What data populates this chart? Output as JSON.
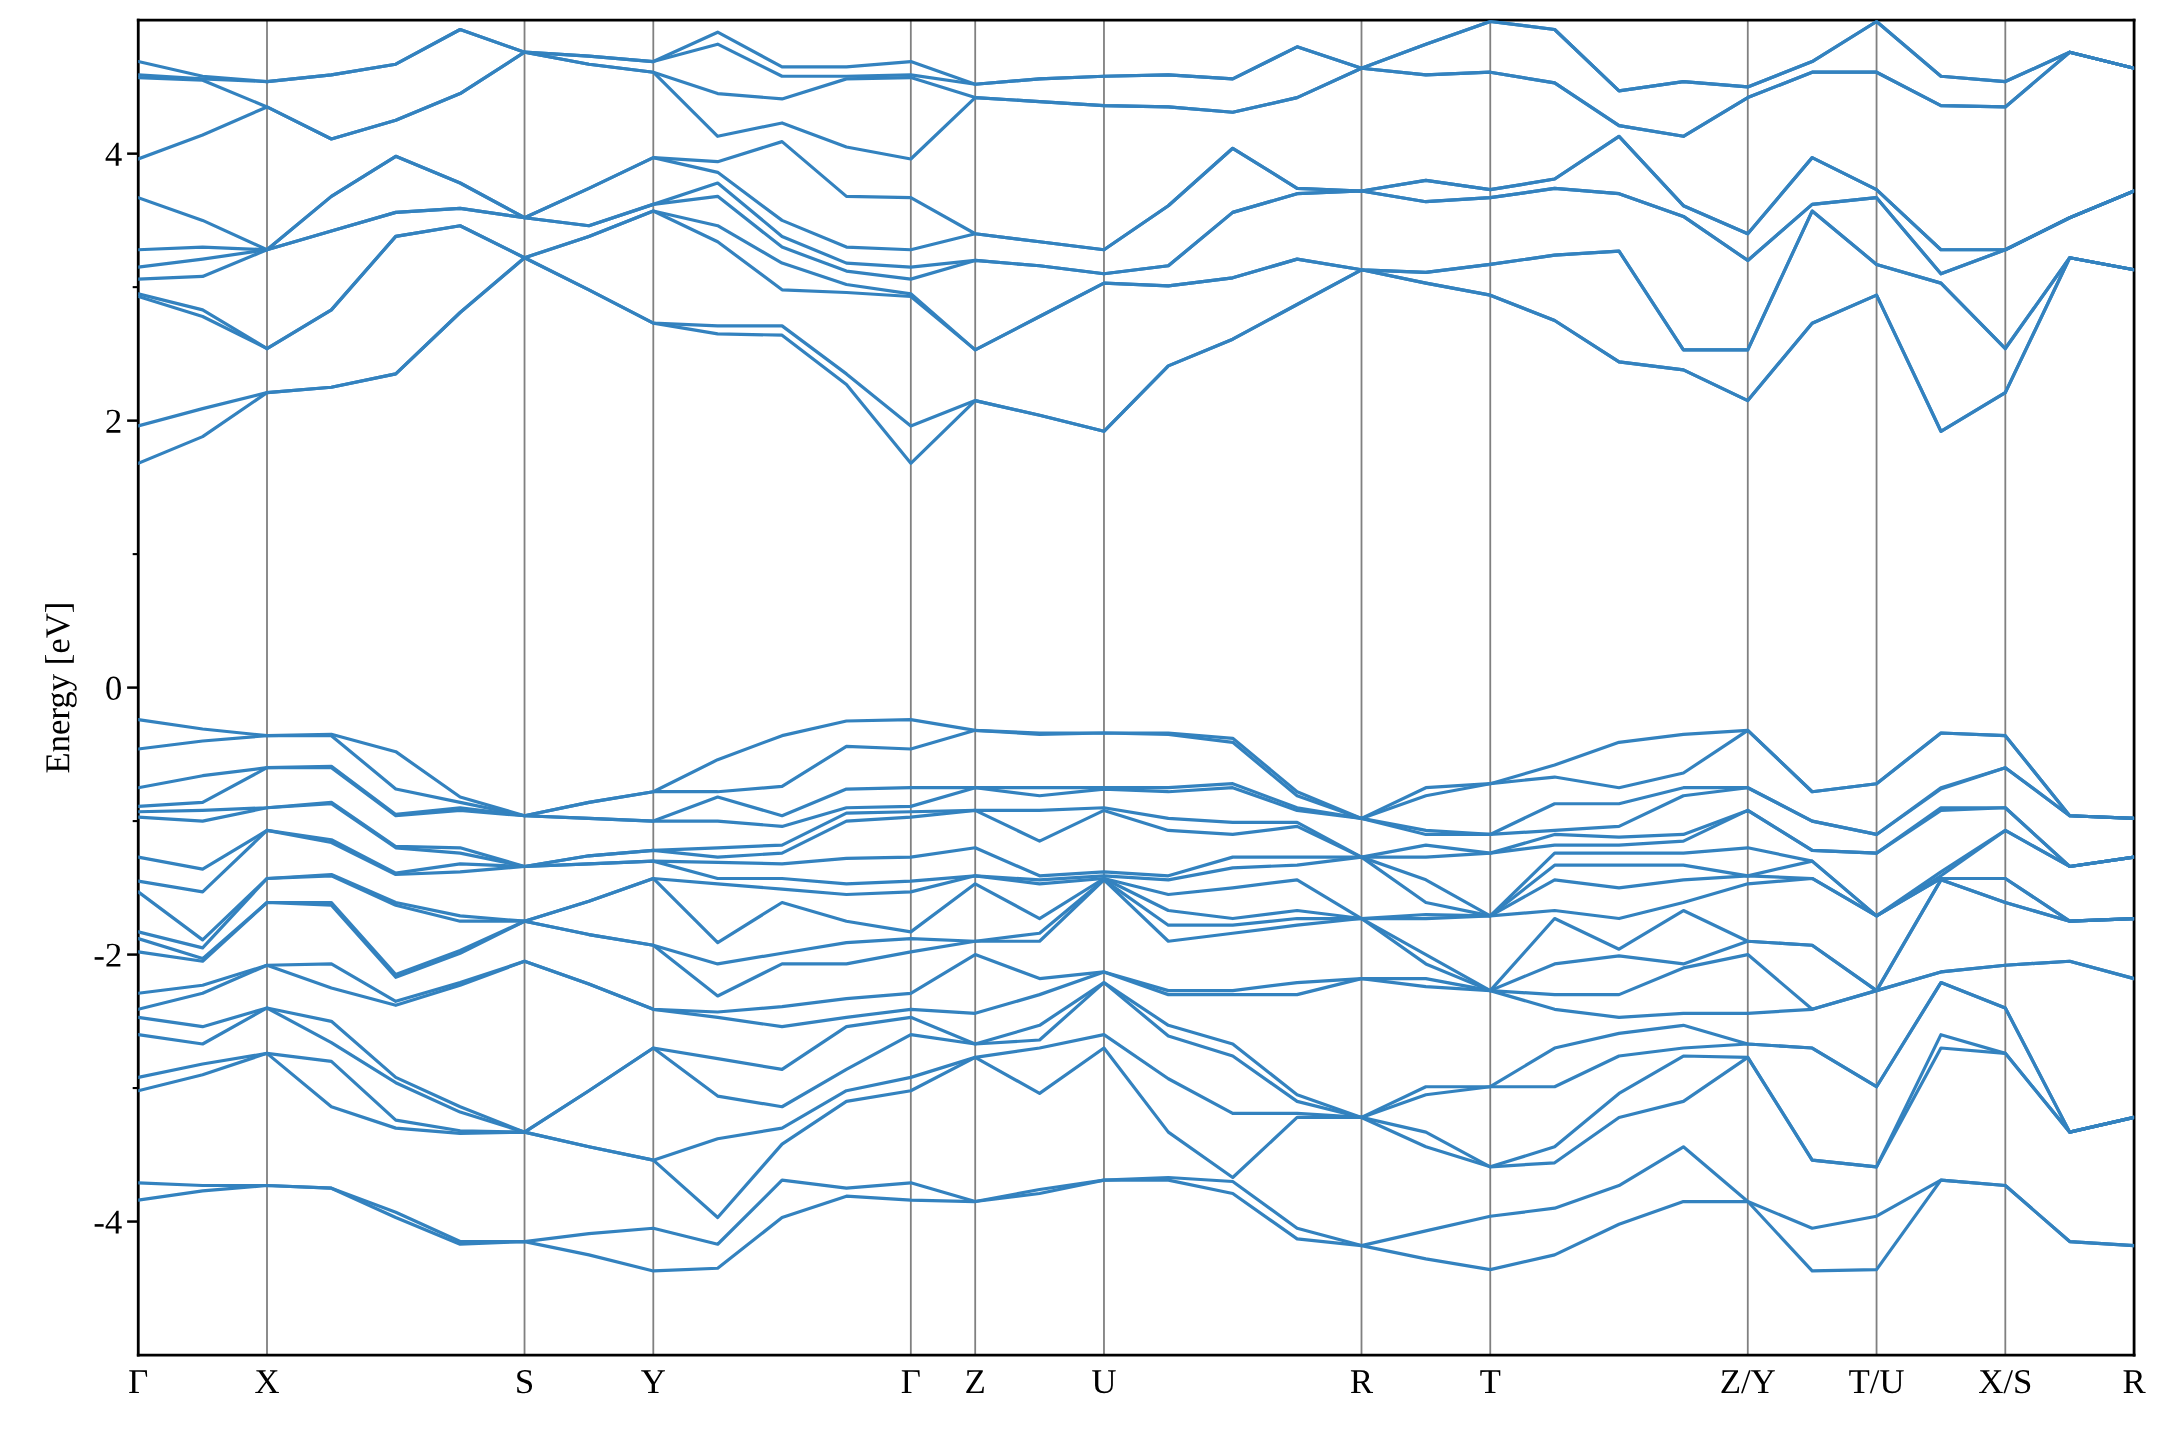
{
  "chart_data": {
    "type": "line",
    "ylabel": "Energy [eV]",
    "legend": false,
    "grid": "x",
    "categories": [
      "Γ",
      null,
      "X",
      null,
      null,
      null,
      "S",
      null,
      "Y",
      null,
      null,
      null,
      "Γ",
      "Z",
      null,
      "U",
      null,
      null,
      null,
      "R",
      null,
      "T",
      null,
      null,
      null,
      "Z/Y",
      null,
      "T/U",
      null,
      "X/S",
      null,
      "R"
    ],
    "ylim": [
      -5,
      5
    ],
    "yticks": [
      {
        "value": -4,
        "label": "-4"
      },
      {
        "value": -3,
        "label": null
      },
      {
        "value": -2,
        "label": "-2"
      },
      {
        "value": -1,
        "label": null
      },
      0,
      {
        "value": 1,
        "label": null
      },
      2,
      {
        "value": 3,
        "label": null
      },
      4
    ],
    "series": [
      {
        "color": "#3382bf",
        "values": [
          -3.84,
          -3.77,
          -3.73,
          -3.75,
          -3.97,
          -4.17,
          -4.15,
          -4.25,
          -4.37,
          -4.35,
          -3.97,
          -3.81,
          -3.84,
          -3.85,
          -3.79,
          -3.69,
          -3.69,
          -3.79,
          -4.13,
          -4.18,
          -4.28,
          -4.36,
          -4.25,
          -4.02,
          -3.85,
          -3.85,
          -4.37,
          -4.36,
          -3.69,
          -3.73,
          -4.15,
          -4.18
        ]
      },
      {
        "color": "#3382bf",
        "values": [
          -3.71,
          -3.73,
          -3.73,
          -3.75,
          -3.93,
          -4.15,
          -4.15,
          -4.09,
          -4.05,
          -4.17,
          -3.69,
          -3.75,
          -3.71,
          -3.85,
          -3.76,
          -3.69,
          -3.67,
          -3.7,
          -4.05,
          -4.18,
          -4.07,
          -3.96,
          -3.9,
          -3.73,
          -3.44,
          -3.85,
          -4.05,
          -3.96,
          -3.69,
          -3.73,
          -4.15,
          -4.18
        ]
      },
      {
        "color": "#3382bf",
        "values": [
          -3.02,
          -2.9,
          -2.74,
          -3.14,
          -3.3,
          -3.34,
          -3.33,
          -3.44,
          -3.54,
          -3.97,
          -3.42,
          -3.1,
          -3.02,
          -2.77,
          -3.04,
          -2.7,
          -3.33,
          -3.67,
          -3.22,
          -3.22,
          -3.44,
          -3.59,
          -3.56,
          -3.22,
          -3.1,
          -2.77,
          -3.54,
          -3.59,
          -2.7,
          -2.74,
          -3.33,
          -3.22
        ]
      },
      {
        "color": "#3382bf",
        "values": [
          -2.92,
          -2.82,
          -2.74,
          -2.8,
          -3.24,
          -3.32,
          -3.33,
          -3.44,
          -3.54,
          -3.38,
          -3.3,
          -3.02,
          -2.92,
          -2.77,
          -2.7,
          -2.6,
          -2.93,
          -3.19,
          -3.19,
          -3.22,
          -3.33,
          -3.59,
          -3.44,
          -3.04,
          -2.76,
          -2.77,
          -3.54,
          -3.59,
          -2.6,
          -2.74,
          -3.33,
          -3.22
        ]
      },
      {
        "color": "#3382bf",
        "values": [
          -2.6,
          -2.67,
          -2.4,
          -2.66,
          -2.96,
          -3.18,
          -3.33,
          -3.02,
          -2.7,
          -3.06,
          -3.14,
          -2.86,
          -2.6,
          -2.67,
          -2.64,
          -2.21,
          -2.61,
          -2.76,
          -3.1,
          -3.22,
          -3.05,
          -2.99,
          -2.99,
          -2.76,
          -2.7,
          -2.67,
          -2.7,
          -2.99,
          -2.21,
          -2.4,
          -3.33,
          -3.22
        ]
      },
      {
        "color": "#3382bf",
        "values": [
          -2.47,
          -2.54,
          -2.4,
          -2.5,
          -2.92,
          -3.14,
          -3.33,
          -3.02,
          -2.7,
          -2.78,
          -2.86,
          -2.54,
          -2.47,
          -2.67,
          -2.53,
          -2.21,
          -2.53,
          -2.67,
          -3.05,
          -3.22,
          -2.99,
          -2.99,
          -2.7,
          -2.59,
          -2.53,
          -2.67,
          -2.7,
          -2.99,
          -2.21,
          -2.4,
          -3.33,
          -3.22
        ]
      },
      {
        "color": "#3382bf",
        "values": [
          -2.41,
          -2.29,
          -2.08,
          -2.25,
          -2.38,
          -2.23,
          -2.05,
          -2.22,
          -2.41,
          -2.47,
          -2.54,
          -2.47,
          -2.41,
          -2.44,
          -2.3,
          -2.13,
          -2.3,
          -2.3,
          -2.3,
          -2.18,
          -2.24,
          -2.27,
          -2.41,
          -2.47,
          -2.44,
          -2.44,
          -2.41,
          -2.27,
          -2.13,
          -2.08,
          -2.05,
          -2.18
        ]
      },
      {
        "color": "#3382bf",
        "values": [
          -2.29,
          -2.23,
          -2.08,
          -2.07,
          -2.35,
          -2.21,
          -2.05,
          -2.22,
          -2.41,
          -2.43,
          -2.39,
          -2.33,
          -2.29,
          -2.0,
          -2.18,
          -2.13,
          -2.27,
          -2.27,
          -2.21,
          -2.18,
          -2.18,
          -2.27,
          -2.3,
          -2.3,
          -2.1,
          -2.0,
          -2.41,
          -2.27,
          -2.13,
          -2.08,
          -2.05,
          -2.18
        ]
      },
      {
        "color": "#3382bf",
        "values": [
          -1.98,
          -2.05,
          -1.61,
          -1.63,
          -2.17,
          -1.99,
          -1.75,
          -1.85,
          -1.93,
          -2.31,
          -2.07,
          -2.07,
          -1.98,
          -1.9,
          -1.9,
          -1.44,
          -1.9,
          -1.84,
          -1.78,
          -1.73,
          -2.07,
          -2.27,
          -2.07,
          -2.01,
          -2.07,
          -1.9,
          -1.93,
          -2.27,
          -1.44,
          -1.61,
          -1.75,
          -1.73
        ]
      },
      {
        "color": "#3382bf",
        "values": [
          -1.88,
          -2.03,
          -1.61,
          -1.61,
          -2.15,
          -1.97,
          -1.75,
          -1.85,
          -1.93,
          -2.07,
          -1.99,
          -1.91,
          -1.88,
          -1.9,
          -1.84,
          -1.44,
          -1.78,
          -1.78,
          -1.73,
          -1.73,
          -2.0,
          -2.27,
          -1.73,
          -1.96,
          -1.67,
          -1.9,
          -1.93,
          -2.27,
          -1.44,
          -1.61,
          -1.75,
          -1.73
        ]
      },
      {
        "color": "#3382bf",
        "values": [
          -1.83,
          -1.95,
          -1.43,
          -1.41,
          -1.63,
          -1.75,
          -1.75,
          -1.6,
          -1.43,
          -1.91,
          -1.61,
          -1.75,
          -1.83,
          -1.47,
          -1.73,
          -1.43,
          -1.67,
          -1.73,
          -1.67,
          -1.73,
          -1.73,
          -1.71,
          -1.67,
          -1.73,
          -1.61,
          -1.47,
          -1.43,
          -1.71,
          -1.43,
          -1.43,
          -1.75,
          -1.73
        ]
      },
      {
        "color": "#3382bf",
        "values": [
          -1.53,
          -1.89,
          -1.43,
          -1.4,
          -1.61,
          -1.71,
          -1.75,
          -1.6,
          -1.43,
          -1.47,
          -1.51,
          -1.55,
          -1.53,
          -1.41,
          -1.47,
          -1.43,
          -1.55,
          -1.5,
          -1.44,
          -1.73,
          -1.7,
          -1.71,
          -1.44,
          -1.5,
          -1.44,
          -1.41,
          -1.43,
          -1.71,
          -1.43,
          -1.43,
          -1.75,
          -1.73
        ]
      },
      {
        "color": "#3382bf",
        "values": [
          -1.45,
          -1.53,
          -1.07,
          -1.16,
          -1.4,
          -1.38,
          -1.34,
          -1.32,
          -1.3,
          -1.43,
          -1.43,
          -1.47,
          -1.45,
          -1.41,
          -1.44,
          -1.41,
          -1.44,
          -1.35,
          -1.33,
          -1.27,
          -1.61,
          -1.71,
          -1.33,
          -1.33,
          -1.33,
          -1.41,
          -1.3,
          -1.71,
          -1.41,
          -1.07,
          -1.34,
          -1.27
        ]
      },
      {
        "color": "#3382bf",
        "values": [
          -1.27,
          -1.36,
          -1.07,
          -1.14,
          -1.39,
          -1.32,
          -1.34,
          -1.32,
          -1.3,
          -1.31,
          -1.32,
          -1.28,
          -1.27,
          -1.2,
          -1.41,
          -1.38,
          -1.41,
          -1.27,
          -1.27,
          -1.27,
          -1.44,
          -1.71,
          -1.24,
          -1.24,
          -1.24,
          -1.2,
          -1.3,
          -1.71,
          -1.38,
          -1.07,
          -1.34,
          -1.27
        ]
      },
      {
        "color": "#3382bf",
        "values": [
          -0.97,
          -1.0,
          -0.9,
          -0.87,
          -1.2,
          -1.24,
          -1.34,
          -1.26,
          -1.22,
          -1.27,
          -1.24,
          -1.0,
          -0.97,
          -0.92,
          -1.15,
          -0.92,
          -1.07,
          -1.1,
          -1.04,
          -1.27,
          -1.27,
          -1.24,
          -1.18,
          -1.18,
          -1.15,
          -0.92,
          -1.22,
          -1.24,
          -0.92,
          -0.9,
          -1.34,
          -1.27
        ]
      },
      {
        "color": "#3382bf",
        "values": [
          -0.93,
          -0.92,
          -0.9,
          -0.86,
          -1.19,
          -1.2,
          -1.34,
          -1.26,
          -1.22,
          -1.2,
          -1.18,
          -0.94,
          -0.93,
          -0.92,
          -0.92,
          -0.9,
          -0.98,
          -1.01,
          -1.01,
          -1.27,
          -1.18,
          -1.24,
          -1.1,
          -1.12,
          -1.1,
          -0.92,
          -1.22,
          -1.24,
          -0.9,
          -0.9,
          -1.34,
          -1.27
        ]
      },
      {
        "color": "#3382bf",
        "values": [
          -0.89,
          -0.86,
          -0.6,
          -0.6,
          -0.96,
          -0.92,
          -0.96,
          -0.98,
          -1.0,
          -1.0,
          -1.04,
          -0.9,
          -0.89,
          -0.75,
          -0.81,
          -0.76,
          -0.78,
          -0.75,
          -0.92,
          -0.98,
          -1.1,
          -1.1,
          -1.07,
          -1.04,
          -0.81,
          -0.75,
          -1.0,
          -1.1,
          -0.76,
          -0.6,
          -0.96,
          -0.98
        ]
      },
      {
        "color": "#3382bf",
        "values": [
          -0.75,
          -0.66,
          -0.6,
          -0.59,
          -0.95,
          -0.9,
          -0.96,
          -0.98,
          -1.0,
          -0.82,
          -0.96,
          -0.76,
          -0.75,
          -0.75,
          -0.75,
          -0.75,
          -0.75,
          -0.72,
          -0.9,
          -0.98,
          -1.07,
          -1.1,
          -0.87,
          -0.87,
          -0.75,
          -0.75,
          -1.0,
          -1.1,
          -0.75,
          -0.6,
          -0.96,
          -0.98
        ]
      },
      {
        "color": "#3382bf",
        "values": [
          -0.46,
          -0.4,
          -0.36,
          -0.36,
          -0.76,
          -0.86,
          -0.96,
          -0.86,
          -0.78,
          -0.78,
          -0.74,
          -0.44,
          -0.46,
          -0.32,
          -0.35,
          -0.34,
          -0.35,
          -0.41,
          -0.81,
          -0.98,
          -0.81,
          -0.72,
          -0.67,
          -0.75,
          -0.64,
          -0.32,
          -0.78,
          -0.72,
          -0.34,
          -0.36,
          -0.96,
          -0.98
        ]
      },
      {
        "color": "#3382bf",
        "values": [
          -0.24,
          -0.31,
          -0.36,
          -0.35,
          -0.48,
          -0.82,
          -0.96,
          -0.86,
          -0.78,
          -0.54,
          -0.36,
          -0.25,
          -0.24,
          -0.32,
          -0.34,
          -0.34,
          -0.34,
          -0.38,
          -0.78,
          -0.98,
          -0.75,
          -0.72,
          -0.58,
          -0.41,
          -0.35,
          -0.32,
          -0.78,
          -0.72,
          -0.34,
          -0.36,
          -0.96,
          -0.98
        ]
      },
      {
        "color": "#3382bf",
        "values": [
          1.68,
          1.88,
          2.21,
          2.25,
          2.35,
          2.81,
          3.22,
          2.98,
          2.73,
          2.65,
          2.64,
          2.27,
          1.68,
          2.15,
          2.04,
          1.92,
          2.41,
          2.61,
          2.87,
          3.13,
          3.03,
          2.94,
          2.75,
          2.44,
          2.38,
          2.15,
          2.73,
          2.94,
          1.92,
          2.21,
          3.22,
          3.13
        ]
      },
      {
        "color": "#3382bf",
        "values": [
          1.96,
          2.09,
          2.21,
          2.25,
          2.35,
          2.81,
          3.22,
          2.98,
          2.73,
          2.71,
          2.71,
          2.35,
          1.96,
          2.15,
          2.04,
          1.92,
          2.41,
          2.61,
          2.87,
          3.13,
          3.03,
          2.94,
          2.75,
          2.44,
          2.38,
          2.15,
          2.73,
          2.94,
          1.92,
          2.21,
          3.22,
          3.13
        ]
      },
      {
        "color": "#3382bf",
        "values": [
          2.93,
          2.78,
          2.54,
          2.83,
          3.38,
          3.46,
          3.22,
          3.38,
          3.57,
          3.34,
          2.98,
          2.96,
          2.93,
          2.53,
          2.78,
          3.03,
          3.01,
          3.07,
          3.21,
          3.13,
          3.11,
          3.17,
          3.24,
          3.27,
          2.53,
          2.53,
          3.57,
          3.17,
          3.03,
          2.54,
          3.22,
          3.13
        ]
      },
      {
        "color": "#3382bf",
        "values": [
          2.95,
          2.83,
          2.54,
          2.83,
          3.38,
          3.46,
          3.22,
          3.38,
          3.57,
          3.46,
          3.18,
          3.02,
          2.95,
          2.53,
          2.78,
          3.03,
          3.01,
          3.07,
          3.21,
          3.13,
          3.11,
          3.17,
          3.24,
          3.27,
          2.53,
          2.53,
          3.57,
          3.17,
          3.03,
          2.54,
          3.22,
          3.13
        ]
      },
      {
        "color": "#3382bf",
        "values": [
          3.06,
          3.08,
          3.28,
          3.42,
          3.56,
          3.59,
          3.52,
          3.46,
          3.62,
          3.68,
          3.3,
          3.12,
          3.06,
          3.2,
          3.16,
          3.1,
          3.16,
          3.56,
          3.7,
          3.72,
          3.64,
          3.67,
          3.74,
          3.7,
          3.53,
          3.2,
          3.62,
          3.67,
          3.1,
          3.28,
          3.52,
          3.72
        ]
      },
      {
        "color": "#3382bf",
        "values": [
          3.15,
          3.21,
          3.28,
          3.42,
          3.56,
          3.59,
          3.52,
          3.46,
          3.62,
          3.78,
          3.38,
          3.18,
          3.15,
          3.2,
          3.16,
          3.1,
          3.16,
          3.56,
          3.7,
          3.72,
          3.64,
          3.67,
          3.74,
          3.7,
          3.53,
          3.2,
          3.62,
          3.67,
          3.1,
          3.28,
          3.52,
          3.72
        ]
      },
      {
        "color": "#3382bf",
        "values": [
          3.28,
          3.3,
          3.28,
          3.68,
          3.98,
          3.78,
          3.52,
          3.74,
          3.97,
          3.86,
          3.5,
          3.3,
          3.28,
          3.4,
          3.34,
          3.28,
          3.61,
          4.04,
          3.74,
          3.72,
          3.8,
          3.73,
          3.81,
          4.13,
          3.61,
          3.4,
          3.97,
          3.73,
          3.28,
          3.28,
          3.52,
          3.72
        ]
      },
      {
        "color": "#3382bf",
        "values": [
          3.67,
          3.5,
          3.28,
          3.68,
          3.98,
          3.78,
          3.52,
          3.74,
          3.97,
          3.94,
          4.09,
          3.68,
          3.67,
          3.4,
          3.34,
          3.28,
          3.61,
          4.04,
          3.74,
          3.72,
          3.8,
          3.73,
          3.81,
          4.13,
          3.61,
          3.4,
          3.97,
          3.73,
          3.28,
          3.28,
          3.52,
          3.72
        ]
      },
      {
        "color": "#3382bf",
        "values": [
          3.96,
          4.14,
          4.35,
          4.11,
          4.25,
          4.45,
          4.76,
          4.67,
          4.61,
          4.13,
          4.23,
          4.05,
          3.96,
          4.42,
          4.39,
          4.36,
          4.35,
          4.31,
          4.42,
          4.64,
          4.59,
          4.61,
          4.53,
          4.21,
          4.13,
          4.42,
          4.61,
          4.61,
          4.36,
          4.35,
          4.76,
          4.64
        ]
      },
      {
        "color": "#3382bf",
        "values": [
          4.57,
          4.55,
          4.35,
          4.11,
          4.25,
          4.45,
          4.76,
          4.67,
          4.61,
          4.45,
          4.41,
          4.56,
          4.57,
          4.42,
          4.39,
          4.36,
          4.35,
          4.31,
          4.42,
          4.64,
          4.59,
          4.61,
          4.53,
          4.21,
          4.13,
          4.42,
          4.61,
          4.61,
          4.36,
          4.35,
          4.76,
          4.64
        ]
      },
      {
        "color": "#3382bf",
        "values": [
          4.59,
          4.56,
          4.54,
          4.59,
          4.67,
          4.93,
          4.76,
          4.73,
          4.69,
          4.82,
          4.58,
          4.58,
          4.59,
          4.52,
          4.56,
          4.58,
          4.59,
          4.56,
          4.8,
          4.64,
          4.82,
          4.99,
          4.93,
          4.47,
          4.54,
          4.5,
          4.69,
          4.99,
          4.58,
          4.54,
          4.76,
          4.64
        ]
      },
      {
        "color": "#3382bf",
        "values": [
          4.69,
          4.58,
          4.54,
          4.59,
          4.67,
          4.93,
          4.76,
          4.73,
          4.69,
          4.91,
          4.65,
          4.65,
          4.69,
          4.52,
          4.56,
          4.58,
          4.59,
          4.56,
          4.8,
          4.64,
          4.82,
          4.99,
          4.93,
          4.47,
          4.54,
          4.5,
          4.69,
          4.99,
          4.58,
          4.54,
          4.76,
          4.64
        ]
      }
    ]
  }
}
